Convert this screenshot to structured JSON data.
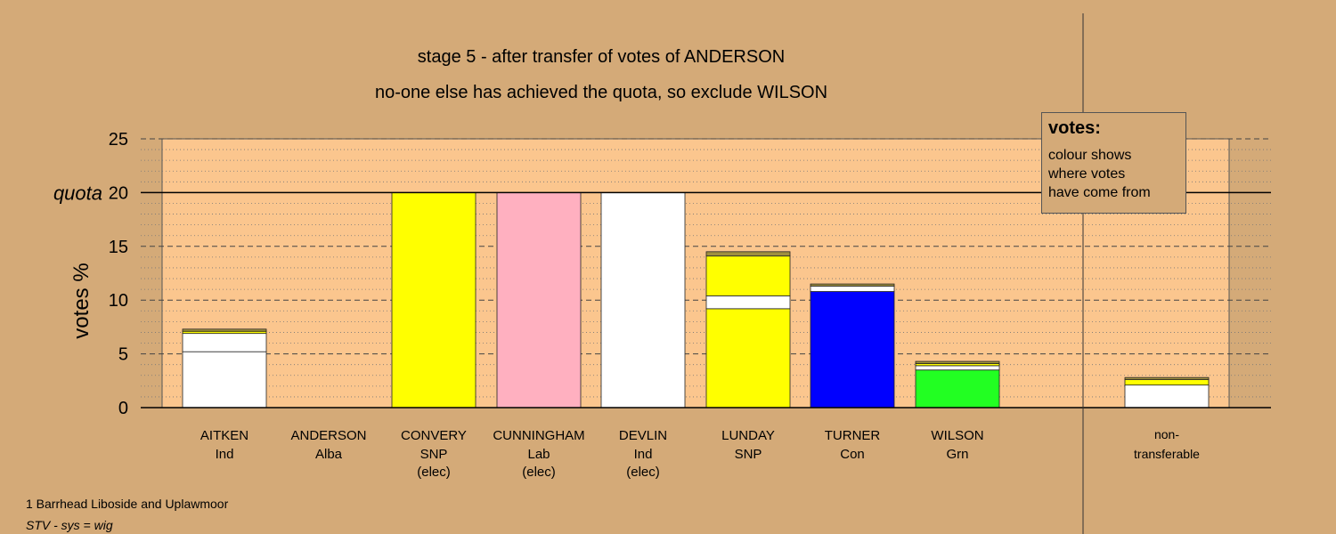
{
  "titles": {
    "line1": "stage 5 - after transfer of votes of ANDERSON",
    "line2": "no-one else has achieved the quota, so exclude WILSON"
  },
  "legend": {
    "heading": "votes:",
    "lines": [
      "colour shows",
      "where votes",
      "have come from"
    ]
  },
  "footer": {
    "ward": "1 Barrhead Liboside and Uplawmoor",
    "system": "STV - sys = wig"
  },
  "colors": {
    "background": "#d4aa78",
    "plot_area": "#fbc68e"
  },
  "chart_data": {
    "type": "bar",
    "stacked": true,
    "ylabel": "votes %",
    "ylim": [
      0,
      25
    ],
    "yticks": [
      0,
      5,
      10,
      15,
      20,
      25
    ],
    "quota": 20,
    "quota_label": "quota",
    "grid": "dashed every 5, dotted every 1",
    "legend_position": "top-right",
    "candidates": [
      {
        "name": "AITKEN",
        "party": "Ind",
        "status": "",
        "segments": [
          {
            "value": 5.2,
            "color": "#ffffff"
          },
          {
            "value": 1.7,
            "color": "#ffffff"
          },
          {
            "value": 0.2,
            "color": "#ffff00"
          },
          {
            "value": 0.2,
            "color": "#a09040"
          }
        ]
      },
      {
        "name": "ANDERSON",
        "party": "Alba",
        "status": "",
        "segments": []
      },
      {
        "name": "CONVERY",
        "party": "SNP",
        "status": "(elec)",
        "segments": [
          {
            "value": 20.0,
            "color": "#ffff00"
          }
        ]
      },
      {
        "name": "CUNNINGHAM",
        "party": "Lab",
        "status": "(elec)",
        "segments": [
          {
            "value": 20.0,
            "color": "#ffb0c0"
          }
        ]
      },
      {
        "name": "DEVLIN",
        "party": "Ind",
        "status": "(elec)",
        "segments": [
          {
            "value": 20.0,
            "color": "#ffffff"
          }
        ]
      },
      {
        "name": "LUNDAY",
        "party": "SNP",
        "status": "",
        "segments": [
          {
            "value": 9.2,
            "color": "#ffff00"
          },
          {
            "value": 1.2,
            "color": "#ffffff"
          },
          {
            "value": 3.7,
            "color": "#ffff00"
          },
          {
            "value": 0.4,
            "color": "#a09040"
          }
        ]
      },
      {
        "name": "TURNER",
        "party": "Con",
        "status": "",
        "segments": [
          {
            "value": 10.8,
            "color": "#0000ff"
          },
          {
            "value": 0.5,
            "color": "#ffffff"
          },
          {
            "value": 0.2,
            "color": "#a09040"
          }
        ]
      },
      {
        "name": "WILSON",
        "party": "Grn",
        "status": "",
        "segments": [
          {
            "value": 3.5,
            "color": "#22ff22"
          },
          {
            "value": 0.4,
            "color": "#ffffff"
          },
          {
            "value": 0.2,
            "color": "#ffff00"
          },
          {
            "value": 0.2,
            "color": "#a09040"
          }
        ]
      }
    ],
    "nontransferable": {
      "label_line1": "non-",
      "label_line2": "transferable",
      "segments": [
        {
          "value": 2.1,
          "color": "#ffffff"
        },
        {
          "value": 0.5,
          "color": "#ffff00"
        },
        {
          "value": 0.2,
          "color": "#a09040"
        }
      ]
    }
  }
}
